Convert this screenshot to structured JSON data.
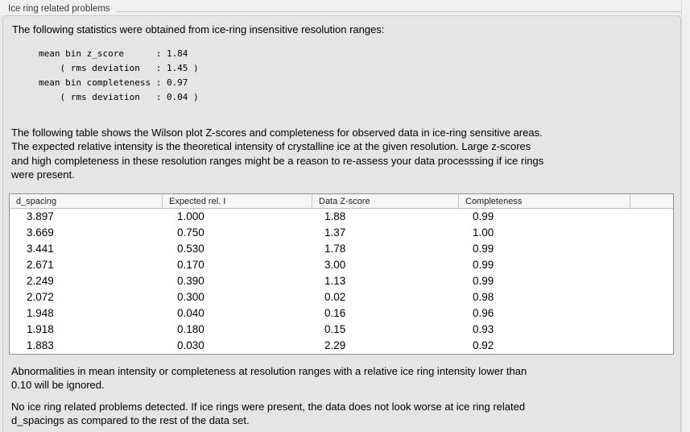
{
  "section": {
    "title": "Ice ring related problems"
  },
  "intro": {
    "text": "The following statistics were obtained from ice-ring insensitive resolution ranges:"
  },
  "stats": {
    "lines": [
      "mean bin z_score      : 1.84",
      "    ( rms deviation   : 1.45 )",
      "mean bin completeness : 0.97",
      "    ( rms deviation   : 0.04 )"
    ]
  },
  "description": {
    "lines": [
      "The following table shows the Wilson plot Z-scores and completeness for observed data in ice-ring sensitive areas.",
      "The expected relative intensity is the theoretical intensity of crystalline ice at the given resolution. Large z-scores",
      "and high completeness in these resolution ranges might be a reason to re-assess your data processsing if ice rings",
      "were present."
    ]
  },
  "table": {
    "columns": [
      "d_spacing",
      "Expected rel. I",
      "Data Z-score",
      "Completeness",
      ""
    ],
    "rows": [
      [
        "3.897",
        "1.000",
        "1.88",
        "0.99"
      ],
      [
        "3.669",
        "0.750",
        "1.37",
        "1.00"
      ],
      [
        "3.441",
        "0.530",
        "1.78",
        "0.99"
      ],
      [
        "2.671",
        "0.170",
        "3.00",
        "0.99"
      ],
      [
        "2.249",
        "0.390",
        "1.13",
        "0.99"
      ],
      [
        "2.072",
        "0.300",
        "0.02",
        "0.98"
      ],
      [
        "1.948",
        "0.040",
        "0.16",
        "0.96"
      ],
      [
        "1.918",
        "0.180",
        "0.15",
        "0.93"
      ],
      [
        "1.883",
        "0.030",
        "2.29",
        "0.92"
      ]
    ]
  },
  "notes": {
    "ignore": {
      "lines": [
        "Abnormalities in mean intensity or completeness at resolution ranges with a relative ice ring intensity lower than",
        "0.10 will be ignored."
      ]
    },
    "conclusion": {
      "lines": [
        "No ice ring related problems detected. If ice rings were present, the data does not look worse at ice ring related",
        "d_spacings as compared to the rest of the data set."
      ]
    }
  },
  "colors": {
    "strip_bg": "#f0f0f0",
    "panel_bg": "#e5e5e5",
    "panel_border": "#c8c8c8",
    "table_border": "#909090",
    "table_header_bg": "#f6f6f6",
    "row_bg": "#ffffff",
    "text": "#000000"
  }
}
